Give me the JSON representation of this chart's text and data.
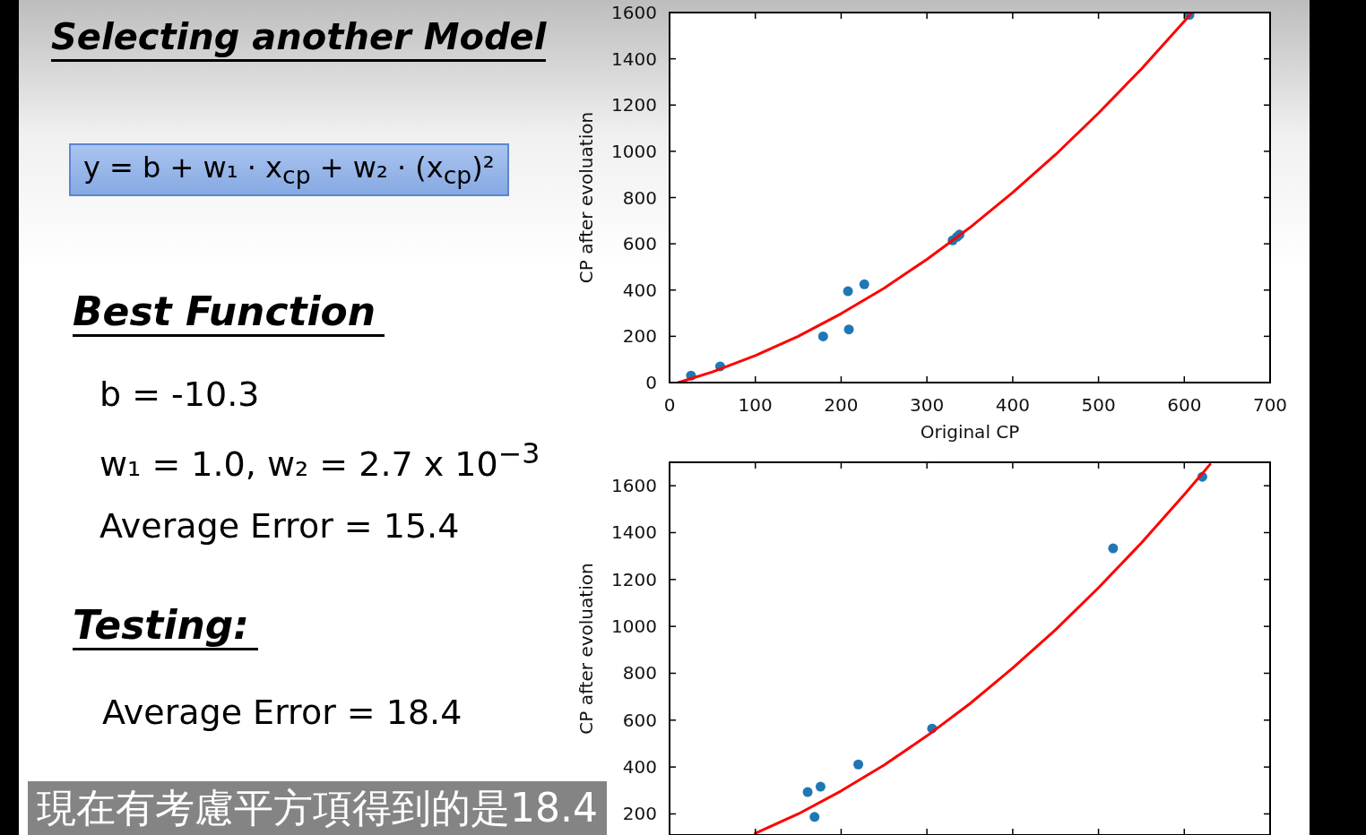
{
  "chart_data": [
    {
      "type": "other",
      "title": "Selecting another Model",
      "annotations": [
        "y = b + w₁ · x$_{cp}$ + w₂ · (x$_{cp}$)²",
        "Best Function",
        "b = -10.3",
        "w₁ = 1.0, w₂ = 2.7 x 10$^{−3}$",
        "Average Error = 15.4",
        "Testing:",
        "Average Error = 18.4",
        "現在有考慮平方項得到的是18.4"
      ]
    },
    {
      "type": "scatter",
      "xlabel": "Original CP",
      "ylabel": "CP after evoluation",
      "xlim": [
        0,
        700
      ],
      "xticks": [
        0,
        100,
        200,
        300,
        400,
        500,
        600,
        700
      ],
      "ylim": [
        0,
        1600
      ],
      "yticks": [
        0,
        200,
        400,
        600,
        800,
        1000,
        1200,
        1400,
        1600
      ],
      "series": [
        {
          "type": "scatter",
          "color": "#1f77b4",
          "x": [
            25,
            59,
            179,
            208,
            209,
            227,
            330,
            335,
            338,
            606
          ],
          "values": [
            30,
            70,
            200,
            395,
            230,
            425,
            615,
            630,
            640,
            1590
          ]
        },
        {
          "type": "line",
          "color": "#ff0000",
          "x": [
            10,
            50,
            100,
            150,
            200,
            250,
            300,
            350,
            400,
            450,
            500,
            550,
            600,
            608
          ],
          "values": [
            0,
            46,
            117,
            200,
            298,
            408,
            533,
            670,
            822,
            986,
            1165,
            1356,
            1562,
            1596
          ]
        }
      ]
    },
    {
      "type": "scatter",
      "ylabel": "CP after evoluation",
      "tick_labels": "y",
      "xlim": [
        0,
        700
      ],
      "xticks": [
        {
          "value": 0,
          "label": null
        },
        {
          "value": 100,
          "label": null
        },
        {
          "value": 200,
          "label": null
        },
        {
          "value": 300,
          "label": null
        },
        {
          "value": 400,
          "label": null
        },
        {
          "value": 500,
          "label": null
        },
        {
          "value": 600,
          "label": null
        },
        {
          "value": 700,
          "label": null
        }
      ],
      "ylim": [
        110,
        1700
      ],
      "yticks": [
        200,
        400,
        600,
        800,
        1000,
        1200,
        1400,
        1600
      ],
      "series": [
        {
          "type": "scatter",
          "color": "#1f77b4",
          "x": [
            161,
            169,
            176,
            220,
            306,
            517,
            621
          ],
          "values": [
            293,
            187,
            316,
            411,
            564,
            1333,
            1638
          ]
        },
        {
          "type": "line",
          "color": "#ff0000",
          "x": [
            100,
            150,
            200,
            250,
            300,
            350,
            400,
            450,
            500,
            550,
            600,
            630
          ],
          "values": [
            117,
            200,
            298,
            408,
            533,
            670,
            822,
            986,
            1165,
            1356,
            1562,
            1691
          ]
        }
      ]
    }
  ]
}
